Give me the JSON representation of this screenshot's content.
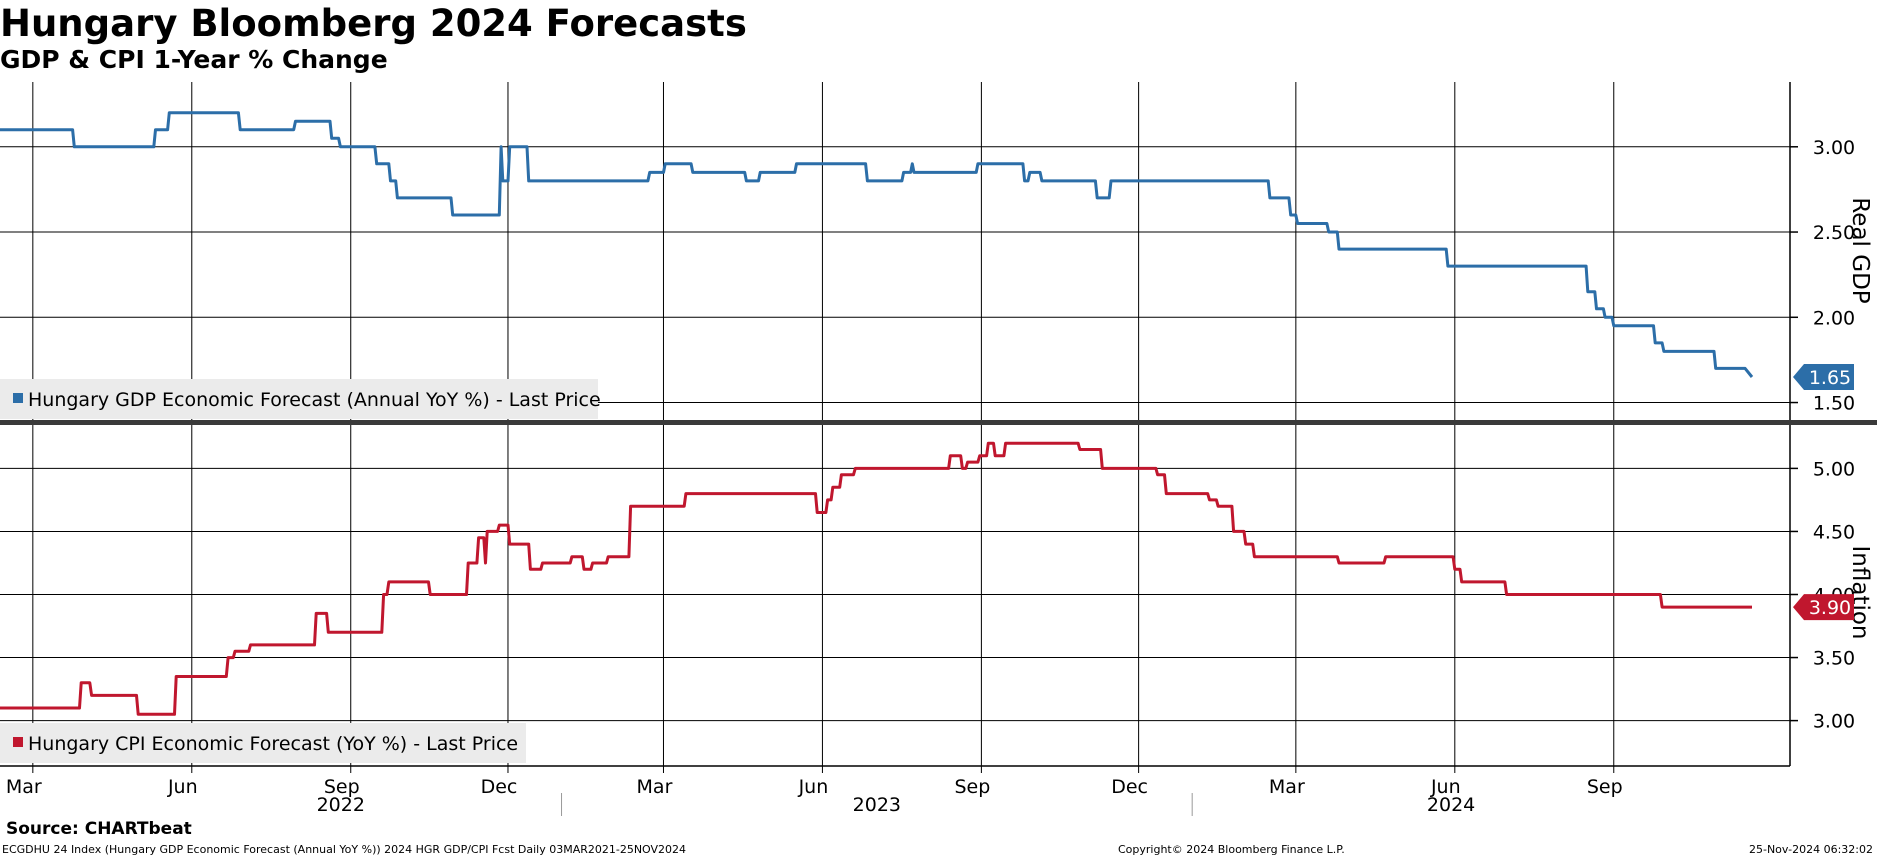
{
  "title": "Hungary Bloomberg 2024 Forecasts",
  "subtitle": "GDP & CPI 1-Year % Change",
  "source": "Source: CHARTbeat",
  "footer": {
    "left": "ECGDHU 24 Index (Hungary GDP Economic Forecast (Annual YoY %)) 2024 HGR GDP/CPI Fcst  Daily 03MAR2021-25NOV2024",
    "center": "Copyright© 2024 Bloomberg Finance L.P.",
    "right": "25-Nov-2024 06:32:02"
  },
  "colors": {
    "gdp": "#2c6ea8",
    "cpi": "#c0172e",
    "grid": "#000000",
    "legend_bg": "#ebebeb"
  },
  "chart_data": [
    {
      "type": "line",
      "ylabel": "Real GDP",
      "ylim": [
        1.38,
        3.38
      ],
      "y_ticks": [
        "3.00",
        "2.50",
        "2.00",
        "1.50"
      ],
      "x_range": [
        "2022-02-10",
        "2024-12-12"
      ],
      "legend": "top-left",
      "grid": true,
      "last_value_label": "1.65",
      "series": [
        {
          "name": "Hungary GDP Economic Forecast (Annual YoY %) - Last Price",
          "points": [
            [
              "2022-02-10",
              3.1
            ],
            [
              "2022-03-24",
              3.1
            ],
            [
              "2022-03-25",
              3.0
            ],
            [
              "2022-05-10",
              3.0
            ],
            [
              "2022-05-11",
              3.1
            ],
            [
              "2022-05-18",
              3.1
            ],
            [
              "2022-05-19",
              3.2
            ],
            [
              "2022-06-28",
              3.2
            ],
            [
              "2022-06-29",
              3.1
            ],
            [
              "2022-07-30",
              3.1
            ],
            [
              "2022-07-31",
              3.15
            ],
            [
              "2022-08-20",
              3.15
            ],
            [
              "2022-08-21",
              3.05
            ],
            [
              "2022-08-25",
              3.05
            ],
            [
              "2022-08-26",
              3.0
            ],
            [
              "2022-09-15",
              3.0
            ],
            [
              "2022-09-16",
              2.9
            ],
            [
              "2022-09-23",
              2.9
            ],
            [
              "2022-09-24",
              2.8
            ],
            [
              "2022-09-27",
              2.8
            ],
            [
              "2022-09-28",
              2.7
            ],
            [
              "2022-10-29",
              2.7
            ],
            [
              "2022-10-30",
              2.6
            ],
            [
              "2022-11-26",
              2.6
            ],
            [
              "2022-11-27",
              3.0
            ],
            [
              "2022-11-28",
              2.8
            ],
            [
              "2022-12-01",
              2.8
            ],
            [
              "2022-12-02",
              3.0
            ],
            [
              "2022-12-12",
              3.0
            ],
            [
              "2022-12-13",
              2.8
            ],
            [
              "2023-02-20",
              2.8
            ],
            [
              "2023-02-21",
              2.85
            ],
            [
              "2023-03-01",
              2.85
            ],
            [
              "2023-03-02",
              2.9
            ],
            [
              "2023-03-17",
              2.9
            ],
            [
              "2023-03-18",
              2.85
            ],
            [
              "2023-04-17",
              2.85
            ],
            [
              "2023-04-18",
              2.8
            ],
            [
              "2023-04-25",
              2.8
            ],
            [
              "2023-04-26",
              2.85
            ],
            [
              "2023-05-16",
              2.85
            ],
            [
              "2023-05-17",
              2.9
            ],
            [
              "2023-06-26",
              2.9
            ],
            [
              "2023-06-27",
              2.8
            ],
            [
              "2023-07-17",
              2.8
            ],
            [
              "2023-07-18",
              2.85
            ],
            [
              "2023-07-22",
              2.85
            ],
            [
              "2023-07-23",
              2.9
            ],
            [
              "2023-07-24",
              2.85
            ],
            [
              "2023-08-29",
              2.85
            ],
            [
              "2023-08-30",
              2.9
            ],
            [
              "2023-09-25",
              2.9
            ],
            [
              "2023-09-26",
              2.8
            ],
            [
              "2023-09-28",
              2.8
            ],
            [
              "2023-09-29",
              2.85
            ],
            [
              "2023-10-05",
              2.85
            ],
            [
              "2023-10-06",
              2.8
            ],
            [
              "2023-11-06",
              2.8
            ],
            [
              "2023-11-07",
              2.7
            ],
            [
              "2023-11-14",
              2.7
            ],
            [
              "2023-11-15",
              2.8
            ],
            [
              "2024-02-14",
              2.8
            ],
            [
              "2024-02-15",
              2.7
            ],
            [
              "2024-02-26",
              2.7
            ],
            [
              "2024-02-27",
              2.6
            ],
            [
              "2024-03-01",
              2.6
            ],
            [
              "2024-03-02",
              2.55
            ],
            [
              "2024-03-19",
              2.55
            ],
            [
              "2024-03-20",
              2.5
            ],
            [
              "2024-03-25",
              2.5
            ],
            [
              "2024-03-26",
              2.4
            ],
            [
              "2024-05-27",
              2.4
            ],
            [
              "2024-05-28",
              2.3
            ],
            [
              "2024-08-16",
              2.3
            ],
            [
              "2024-08-17",
              2.15
            ],
            [
              "2024-08-21",
              2.15
            ],
            [
              "2024-08-22",
              2.05
            ],
            [
              "2024-08-26",
              2.05
            ],
            [
              "2024-08-27",
              2.0
            ],
            [
              "2024-08-31",
              2.0
            ],
            [
              "2024-09-01",
              1.95
            ],
            [
              "2024-09-24",
              1.95
            ],
            [
              "2024-09-25",
              1.85
            ],
            [
              "2024-09-29",
              1.85
            ],
            [
              "2024-09-30",
              1.8
            ],
            [
              "2024-10-29",
              1.8
            ],
            [
              "2024-10-30",
              1.7
            ],
            [
              "2024-11-16",
              1.7
            ],
            [
              "2024-11-20",
              1.65
            ]
          ]
        }
      ]
    },
    {
      "type": "line",
      "ylabel": "Inflation",
      "ylim": [
        2.64,
        5.36
      ],
      "y_ticks": [
        "5.00",
        "4.50",
        "4.00",
        "3.50",
        "3.00"
      ],
      "x_range": [
        "2022-02-10",
        "2024-12-12"
      ],
      "x_ticks": [
        "Mar",
        "Jun",
        "Sep",
        "Dec",
        "Mar",
        "Jun",
        "Sep",
        "Dec",
        "Mar",
        "Jun",
        "Sep"
      ],
      "x_years": [
        "2022",
        "2023",
        "2024"
      ],
      "legend": "bottom-left",
      "grid": true,
      "last_value_label": "3.90",
      "series": [
        {
          "name": "Hungary CPI Economic Forecast (YoY %) - Last Price",
          "points": [
            [
              "2022-02-10",
              3.1
            ],
            [
              "2022-03-28",
              3.1
            ],
            [
              "2022-03-29",
              3.3
            ],
            [
              "2022-04-03",
              3.3
            ],
            [
              "2022-04-04",
              3.2
            ],
            [
              "2022-04-30",
              3.2
            ],
            [
              "2022-05-01",
              3.05
            ],
            [
              "2022-05-22",
              3.05
            ],
            [
              "2022-05-23",
              3.35
            ],
            [
              "2022-06-21",
              3.35
            ],
            [
              "2022-06-22",
              3.5
            ],
            [
              "2022-06-25",
              3.5
            ],
            [
              "2022-06-26",
              3.55
            ],
            [
              "2022-07-04",
              3.55
            ],
            [
              "2022-07-05",
              3.6
            ],
            [
              "2022-08-11",
              3.6
            ],
            [
              "2022-08-12",
              3.85
            ],
            [
              "2022-08-18",
              3.85
            ],
            [
              "2022-08-19",
              3.7
            ],
            [
              "2022-09-19",
              3.7
            ],
            [
              "2022-09-20",
              4.0
            ],
            [
              "2022-09-22",
              4.0
            ],
            [
              "2022-09-23",
              4.1
            ],
            [
              "2022-10-16",
              4.1
            ],
            [
              "2022-10-17",
              4.0
            ],
            [
              "2022-11-07",
              4.0
            ],
            [
              "2022-11-08",
              4.25
            ],
            [
              "2022-11-13",
              4.25
            ],
            [
              "2022-11-14",
              4.45
            ],
            [
              "2022-11-17",
              4.45
            ],
            [
              "2022-11-18",
              4.25
            ],
            [
              "2022-11-19",
              4.5
            ],
            [
              "2022-11-25",
              4.5
            ],
            [
              "2022-11-26",
              4.55
            ],
            [
              "2022-12-01",
              4.55
            ],
            [
              "2022-12-02",
              4.4
            ],
            [
              "2022-12-13",
              4.4
            ],
            [
              "2022-12-14",
              4.2
            ],
            [
              "2022-12-20",
              4.2
            ],
            [
              "2022-12-21",
              4.25
            ],
            [
              "2023-01-06",
              4.25
            ],
            [
              "2023-01-07",
              4.3
            ],
            [
              "2023-01-13",
              4.3
            ],
            [
              "2023-01-14",
              4.2
            ],
            [
              "2023-01-18",
              4.2
            ],
            [
              "2023-01-19",
              4.25
            ],
            [
              "2023-01-27",
              4.25
            ],
            [
              "2023-01-28",
              4.3
            ],
            [
              "2023-02-09",
              4.3
            ],
            [
              "2023-02-10",
              4.7
            ],
            [
              "2023-03-13",
              4.7
            ],
            [
              "2023-03-14",
              4.8
            ],
            [
              "2023-05-28",
              4.8
            ],
            [
              "2023-05-29",
              4.65
            ],
            [
              "2023-06-03",
              4.65
            ],
            [
              "2023-06-04",
              4.75
            ],
            [
              "2023-06-06",
              4.75
            ],
            [
              "2023-06-07",
              4.85
            ],
            [
              "2023-06-11",
              4.85
            ],
            [
              "2023-06-12",
              4.95
            ],
            [
              "2023-06-19",
              4.95
            ],
            [
              "2023-06-20",
              5.0
            ],
            [
              "2023-08-13",
              5.0
            ],
            [
              "2023-08-14",
              5.1
            ],
            [
              "2023-08-20",
              5.1
            ],
            [
              "2023-08-21",
              5.0
            ],
            [
              "2023-08-23",
              5.0
            ],
            [
              "2023-08-24",
              5.05
            ],
            [
              "2023-08-30",
              5.05
            ],
            [
              "2023-08-31",
              5.1
            ],
            [
              "2023-09-04",
              5.1
            ],
            [
              "2023-09-05",
              5.2
            ],
            [
              "2023-09-08",
              5.2
            ],
            [
              "2023-09-09",
              5.1
            ],
            [
              "2023-09-14",
              5.1
            ],
            [
              "2023-09-15",
              5.2
            ],
            [
              "2023-10-27",
              5.2
            ],
            [
              "2023-10-28",
              5.15
            ],
            [
              "2023-11-09",
              5.15
            ],
            [
              "2023-11-10",
              5.0
            ],
            [
              "2023-12-11",
              5.0
            ],
            [
              "2023-12-12",
              4.95
            ],
            [
              "2023-12-16",
              4.95
            ],
            [
              "2023-12-17",
              4.8
            ],
            [
              "2024-01-10",
              4.8
            ],
            [
              "2024-01-11",
              4.75
            ],
            [
              "2024-01-15",
              4.75
            ],
            [
              "2024-01-16",
              4.7
            ],
            [
              "2024-01-24",
              4.7
            ],
            [
              "2024-01-25",
              4.5
            ],
            [
              "2024-01-31",
              4.5
            ],
            [
              "2024-02-01",
              4.4
            ],
            [
              "2024-02-05",
              4.4
            ],
            [
              "2024-02-06",
              4.3
            ],
            [
              "2024-03-25",
              4.3
            ],
            [
              "2024-03-26",
              4.25
            ],
            [
              "2024-04-21",
              4.25
            ],
            [
              "2024-04-22",
              4.3
            ],
            [
              "2024-05-31",
              4.3
            ],
            [
              "2024-06-01",
              4.2
            ],
            [
              "2024-06-04",
              4.2
            ],
            [
              "2024-06-05",
              4.1
            ],
            [
              "2024-06-30",
              4.1
            ],
            [
              "2024-07-01",
              4.0
            ],
            [
              "2024-09-28",
              4.0
            ],
            [
              "2024-09-29",
              3.9
            ],
            [
              "2024-11-20",
              3.9
            ]
          ]
        }
      ]
    }
  ]
}
